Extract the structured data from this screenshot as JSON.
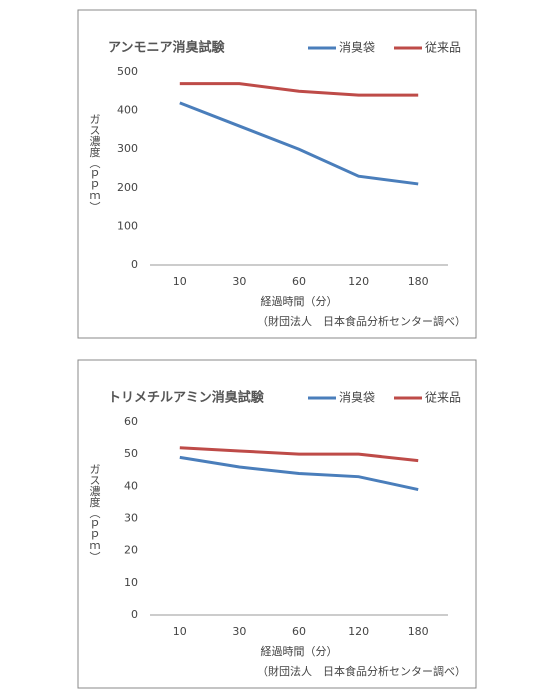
{
  "chart_data": [
    {
      "type": "line",
      "title": "アンモニア消臭試験",
      "x_label": "経過時間（分）",
      "y_label": "ガス濃度（ｐｐｍ）",
      "note": "（財団法人　日本食品分析センター調べ）",
      "categories": [
        "10",
        "30",
        "60",
        "120",
        "180"
      ],
      "series": [
        {
          "name": "消臭袋",
          "color": "#4a7ebb",
          "values": [
            420,
            360,
            300,
            230,
            210
          ]
        },
        {
          "name": "従来品",
          "color": "#be4b48",
          "values": [
            470,
            470,
            450,
            440,
            440
          ]
        }
      ],
      "ylim": [
        0,
        500
      ],
      "yticks": [
        0,
        100,
        200,
        300,
        400,
        500
      ],
      "grid": false,
      "legend": "top-right"
    },
    {
      "type": "line",
      "title": "トリメチルアミン消臭試験",
      "x_label": "経過時間（分）",
      "y_label": "ガス濃度（ｐｐｍ）",
      "note": "（財団法人　日本食品分析センター調べ）",
      "categories": [
        "10",
        "30",
        "60",
        "120",
        "180"
      ],
      "series": [
        {
          "name": "消臭袋",
          "color": "#4a7ebb",
          "values": [
            49,
            46,
            44,
            43,
            39
          ]
        },
        {
          "name": "従来品",
          "color": "#be4b48",
          "values": [
            52,
            51,
            50,
            50,
            48
          ]
        }
      ],
      "ylim": [
        0,
        60
      ],
      "yticks": [
        0,
        10,
        20,
        30,
        40,
        50,
        60
      ],
      "grid": false,
      "legend": "top-right"
    }
  ]
}
